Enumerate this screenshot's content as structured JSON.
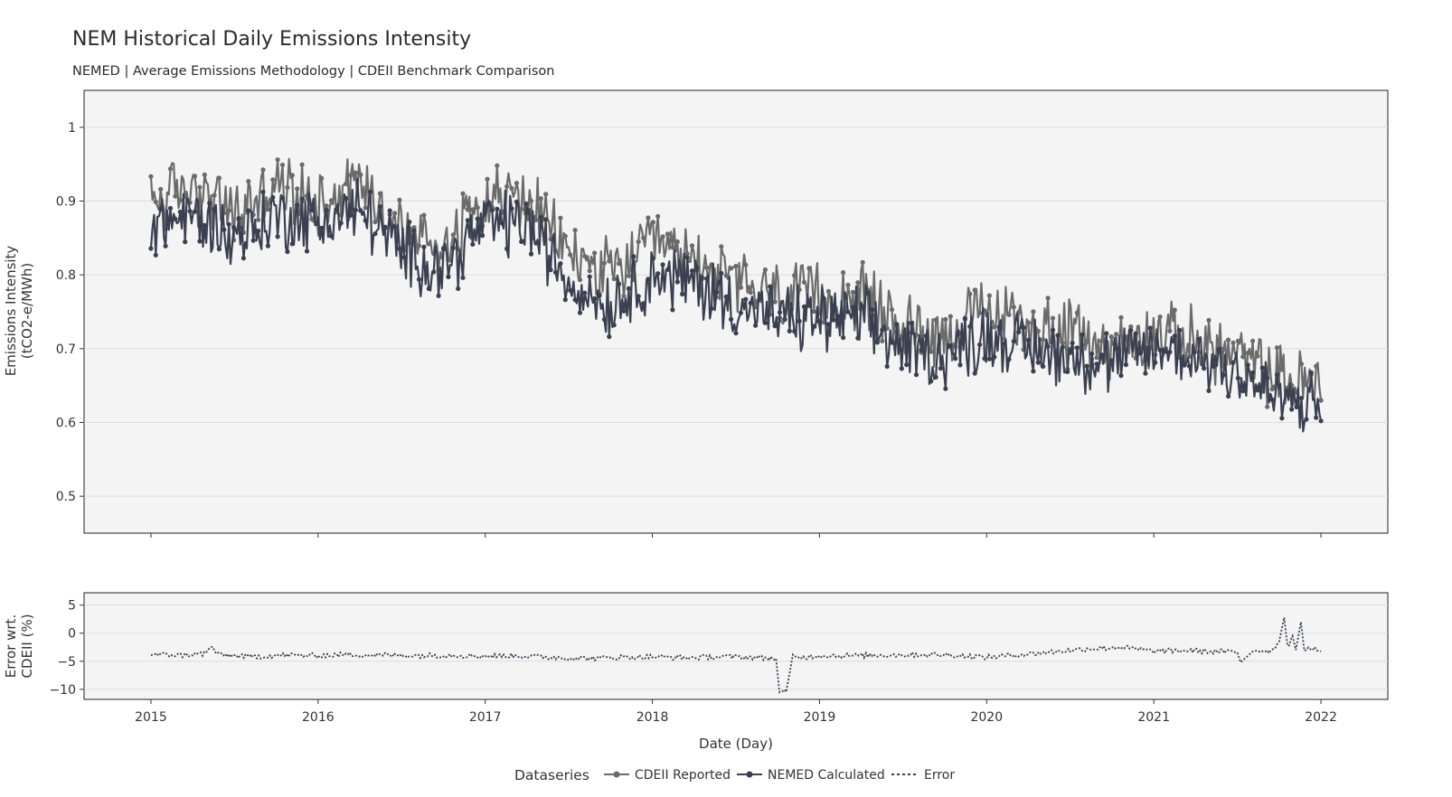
{
  "chart_data": [
    {
      "type": "line",
      "panel": "main",
      "title": "NEM Historical Daily Emissions Intensity",
      "subtitle": "NEMED | Average Emissions Methodology | CDEII Benchmark Comparison",
      "ylabel_lines": [
        "Emissions Intensity",
        "(tCO2-e/MWh)"
      ],
      "ylim": [
        0.45,
        1.05
      ],
      "yticks": [
        0.5,
        0.6,
        0.7,
        0.8,
        0.9,
        1
      ],
      "ytick_labels": [
        "0.5",
        "0.6",
        "0.7",
        "0.8",
        "0.9",
        "1"
      ],
      "xlim": [
        2014.6,
        2022.4
      ],
      "grid": true,
      "series": [
        {
          "name": "CDEII Reported",
          "color": "#6b6b6b",
          "x": [
            2015.0,
            2015.25,
            2015.5,
            2015.75,
            2016.0,
            2016.25,
            2016.5,
            2016.75,
            2017.0,
            2017.25,
            2017.5,
            2017.75,
            2018.0,
            2018.25,
            2018.5,
            2018.75,
            2019.0,
            2019.25,
            2019.5,
            2019.75,
            2020.0,
            2020.25,
            2020.5,
            2020.75,
            2021.0,
            2021.25,
            2021.5,
            2021.75,
            2022.0
          ],
          "values": [
            0.9,
            0.92,
            0.88,
            0.92,
            0.9,
            0.93,
            0.86,
            0.84,
            0.91,
            0.9,
            0.83,
            0.8,
            0.84,
            0.82,
            0.79,
            0.77,
            0.77,
            0.77,
            0.73,
            0.72,
            0.75,
            0.73,
            0.72,
            0.7,
            0.72,
            0.71,
            0.69,
            0.66,
            0.65
          ]
        },
        {
          "name": "NEMED Calculated",
          "color": "#3a4050",
          "x": [
            2015.0,
            2015.25,
            2015.5,
            2015.75,
            2016.0,
            2016.25,
            2016.5,
            2016.75,
            2017.0,
            2017.25,
            2017.5,
            2017.75,
            2018.0,
            2018.25,
            2018.5,
            2018.75,
            2019.0,
            2019.25,
            2019.5,
            2019.75,
            2020.0,
            2020.25,
            2020.5,
            2020.75,
            2021.0,
            2021.25,
            2021.5,
            2021.75,
            2022.0
          ],
          "values": [
            0.87,
            0.88,
            0.85,
            0.88,
            0.87,
            0.89,
            0.83,
            0.81,
            0.87,
            0.87,
            0.79,
            0.76,
            0.8,
            0.79,
            0.76,
            0.74,
            0.74,
            0.74,
            0.7,
            0.69,
            0.72,
            0.7,
            0.69,
            0.68,
            0.7,
            0.69,
            0.67,
            0.63,
            0.62
          ]
        }
      ]
    },
    {
      "type": "line",
      "panel": "error",
      "ylabel_lines": [
        "Error wrt.",
        "CDEII (%)"
      ],
      "ylim": [
        -11.8,
        7.2
      ],
      "yticks": [
        5,
        0,
        -5,
        -10
      ],
      "ytick_labels": [
        "5",
        "0",
        "−5",
        "−10"
      ],
      "xlabel": "Date (Day)",
      "xlim": [
        2014.6,
        2022.4
      ],
      "xticks": [
        2015,
        2016,
        2017,
        2018,
        2019,
        2020,
        2021,
        2022
      ],
      "xtick_labels": [
        "2015",
        "2016",
        "2017",
        "2018",
        "2019",
        "2020",
        "2021",
        "2022"
      ],
      "grid": true,
      "series": [
        {
          "name": "Error",
          "color": "#3a4050",
          "x": [
            2015.0,
            2015.2,
            2015.33,
            2015.36,
            2015.4,
            2015.6,
            2015.8,
            2016.0,
            2016.2,
            2016.4,
            2016.6,
            2016.8,
            2017.0,
            2017.2,
            2017.4,
            2017.6,
            2017.8,
            2018.0,
            2018.2,
            2018.4,
            2018.6,
            2018.74,
            2018.76,
            2018.8,
            2018.84,
            2018.86,
            2019.0,
            2019.2,
            2019.4,
            2019.6,
            2019.8,
            2020.0,
            2020.2,
            2020.4,
            2020.6,
            2020.8,
            2021.0,
            2021.2,
            2021.4,
            2021.5,
            2021.52,
            2021.6,
            2021.7,
            2021.75,
            2021.78,
            2021.8,
            2021.83,
            2021.85,
            2021.88,
            2021.9,
            2021.95,
            2022.0
          ],
          "values": [
            -3.8,
            -3.9,
            -3.6,
            -2.3,
            -3.8,
            -4.2,
            -3.9,
            -4.0,
            -3.8,
            -3.9,
            -4.0,
            -3.9,
            -4.1,
            -4.0,
            -4.3,
            -4.5,
            -4.3,
            -4.2,
            -4.4,
            -4.2,
            -4.3,
            -4.5,
            -10.5,
            -10.5,
            -4.0,
            -4.4,
            -4.0,
            -4.0,
            -3.9,
            -3.8,
            -3.9,
            -4.3,
            -3.8,
            -3.3,
            -2.8,
            -2.5,
            -3.2,
            -3.1,
            -3.3,
            -3.4,
            -5.2,
            -3.0,
            -3.2,
            -1.5,
            2.8,
            -2.5,
            -0.5,
            -3.0,
            2.0,
            -2.8,
            -2.6,
            -3.2
          ]
        }
      ]
    }
  ],
  "legend": {
    "title": "Dataseries",
    "items": [
      {
        "label": "CDEII Reported",
        "style": "line-marker",
        "color": "#6b6b6b"
      },
      {
        "label": "NEMED Calculated",
        "style": "line-marker",
        "color": "#3a4050"
      },
      {
        "label": "Error",
        "style": "dotted",
        "color": "#3a4050"
      }
    ]
  }
}
